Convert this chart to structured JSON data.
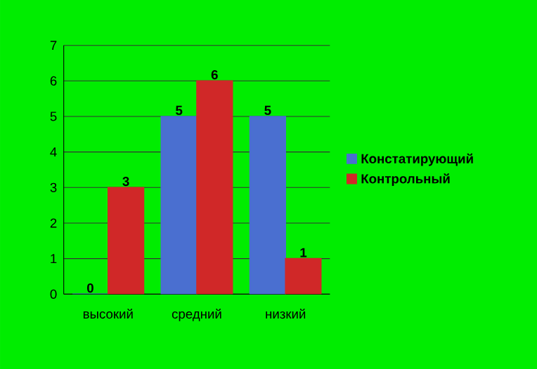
{
  "chart_data": {
    "type": "bar",
    "categories": [
      "высокий",
      "средний",
      "низкий"
    ],
    "series": [
      {
        "name": "Констатирующий",
        "color": "#4a6fd0",
        "values": [
          0,
          5,
          5
        ]
      },
      {
        "name": "Контрольный",
        "color": "#d02828",
        "values": [
          3,
          6,
          1
        ]
      }
    ],
    "ylim": [
      0,
      7
    ],
    "yticks": [
      0,
      1,
      2,
      3,
      4,
      5,
      6,
      7
    ],
    "grid": "y",
    "legend": "right",
    "data_labels": true
  }
}
